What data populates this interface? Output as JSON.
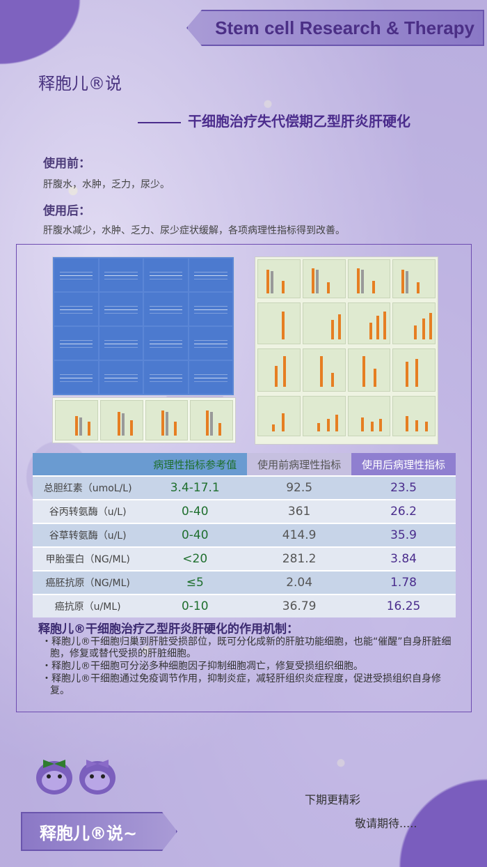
{
  "banner_title": "Stem cell Research & Therapy",
  "brand": "释胞儿®说",
  "subtitle": "干细胞治疗失代偿期乙型肝炎肝硬化",
  "before": {
    "heading": "使用前：",
    "text": "肝腹水，水肿，乏力，尿少。"
  },
  "after": {
    "heading": "使用后：",
    "text": "肝腹水减少，水肿、乏力、尿少症状缓解，各项病理性指标得到改善。"
  },
  "table": {
    "headers": [
      "",
      "病理性指标参考值",
      "使用前病理性指标",
      "使用后病理性指标"
    ],
    "rows": [
      [
        "总胆红素（umoL/L)",
        "3.4-17.1",
        "92.5",
        "23.5"
      ],
      [
        "谷丙转氨酶（u/L)",
        "0-40",
        "361",
        "26.2"
      ],
      [
        "谷草转氨酶（u/L)",
        "0-40",
        "414.9",
        "35.9"
      ],
      [
        "甲胎蛋白（NG/ML)",
        "<20",
        "281.2",
        "3.84"
      ],
      [
        "癌胚抗原（NG/ML)",
        "≤5",
        "2.04",
        "1.78"
      ],
      [
        "癌抗原（u/ML)",
        "0-10",
        "36.79",
        "16.25"
      ]
    ]
  },
  "mechanism": {
    "title": "释胞儿®干细胞治疗乙型肝炎肝硬化的作用机制：",
    "points": [
      "释胞儿®干细胞归巢到肝脏受损部位，既可分化成新的肝脏功能细胞，也能“催醒”自身肝脏细胞，修复或替代受损的肝脏细胞。",
      "释胞儿®干细胞可分泌多种细胞因子抑制细胞凋亡，修复受损组织细胞。",
      "释胞儿®干细胞通过免疫调节作用，抑制炎症，减轻肝组织炎症程度，促进受损组织自身修复。"
    ]
  },
  "footer": {
    "banner": "释胞儿®说~",
    "next": "下期更精彩",
    "stay": "敬请期待....."
  },
  "colors": {
    "accent": "#6a55ad",
    "header_green": "#1f6f2e",
    "purple_text": "#4a2c8c"
  }
}
